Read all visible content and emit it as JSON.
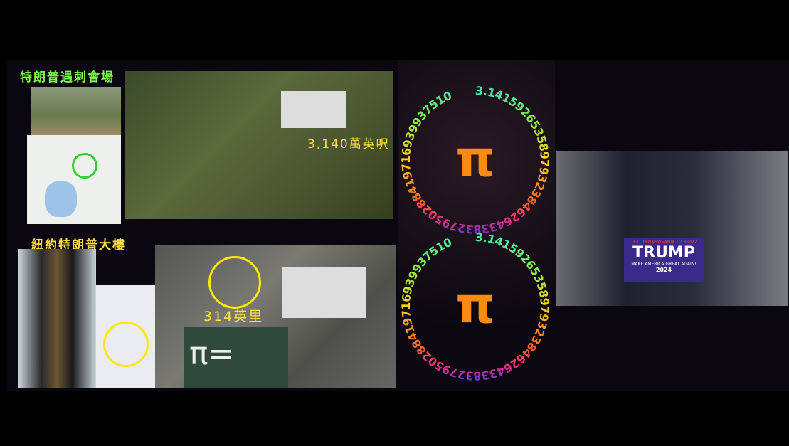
{
  "scene": {
    "sections": [
      {
        "title": "特朗普遇刺會場",
        "distance": "3,140萬英呎"
      },
      {
        "title": "紐約特朗普大樓",
        "distance": "314英里"
      }
    ],
    "pi_rings": [
      {
        "symbol": "π",
        "digits": "3.14159265358979323846264338327950288419716939937510"
      },
      {
        "symbol": "π",
        "digits": "3.14159265358979323846264338327950288419716939937510"
      }
    ],
    "chalkboard": {
      "symbol": "π="
    },
    "sign": {
      "top": "TEXT PENNSYLVANIA TO 88022",
      "name": "TRUMP",
      "slogan": "MAKE AMERICA GREAT AGAIN!",
      "year": "2024"
    }
  }
}
